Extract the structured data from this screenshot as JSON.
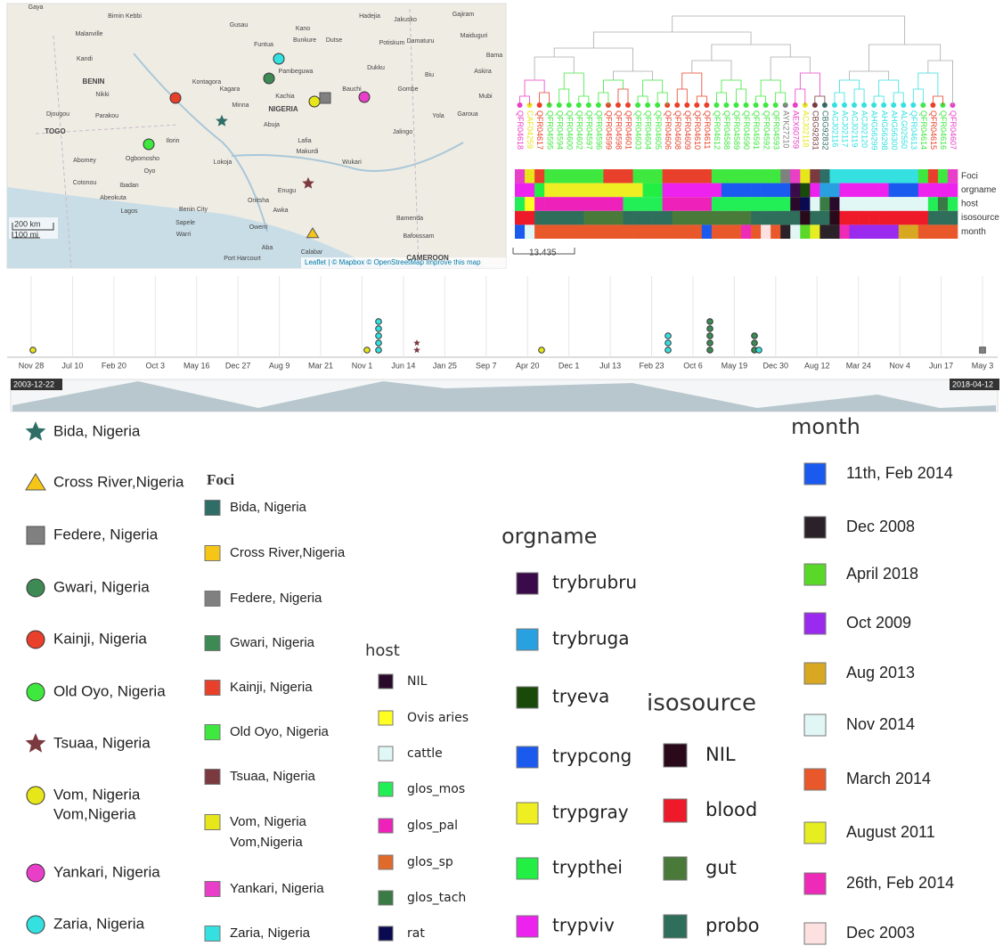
{
  "map": {
    "places": [
      "Gaya",
      "Birnin Kebbi",
      "Gusau",
      "Kano",
      "Hadejia",
      "Jakusko",
      "Gajiram",
      "Malanville",
      "Funtua",
      "Bunkure",
      "Dutse",
      "Potiskum",
      "Damaturu",
      "Maiduguri",
      "Kandi",
      "Bama",
      "Pambeguwa",
      "Dukku",
      "Biu",
      "Askira",
      "BENIN",
      "Kontagora",
      "Kagara",
      "Bauchi",
      "Gombe",
      "Mubi",
      "Nikki",
      "Parakou",
      "Minna",
      "Kachia",
      "NIGERIA",
      "Yola",
      "Garoua",
      "Djougou",
      "TOGO",
      "Abuja",
      "Jalingo",
      "Ilorin",
      "Lafia",
      "Ogbomosho",
      "Oyo",
      "Wukari",
      "Makurdi",
      "Ibadan",
      "Lokoja",
      "Abomey",
      "Cotonou",
      "Abeokuta",
      "Lagos",
      "Benin City",
      "Enugu",
      "Onitsha",
      "Awka",
      "Sapele",
      "Warri",
      "Owerri",
      "Bamenda",
      "CAMEROON",
      "Aba",
      "Port Harcourt",
      "Calabar",
      "Bafoussam"
    ],
    "scale_km": "200 km",
    "scale_mi": "100 mi",
    "attribution": "Leaflet | © Mapbox © OpenStreetMap Improve this map"
  },
  "tree": {
    "tips": [
      "QFR04618",
      "CAF04259",
      "QFR04617",
      "QFR04595",
      "QFR04594",
      "QFR04600",
      "QFR04602",
      "QFR04597",
      "QFR04596",
      "QFR04599",
      "QFR04598",
      "QFR04601",
      "QFR04603",
      "QFR04604",
      "QFR04605",
      "QFR04606",
      "QFR04608",
      "QFR04609",
      "QFR04610",
      "QFR04611",
      "QFR04612",
      "QFR04588",
      "QFR04589",
      "QFR04590",
      "QFR04591",
      "QFR04592",
      "QFR04593",
      "AYK27210",
      "AEX60759",
      "ACJ02118",
      "CBG92831",
      "CBG92832",
      "ACJ02116",
      "ACJ02117",
      "ACJ02119",
      "ACJ02120",
      "AHG56299",
      "AHG56298",
      "AHG56300",
      "ALG02550",
      "QFR04613",
      "QFR04614",
      "QFR04615",
      "QFR04616",
      "QFR04607"
    ],
    "rows": [
      "Foci",
      "orgname",
      "host",
      "isosource",
      "month"
    ],
    "scale": "13.435"
  },
  "timeline": {
    "ticks": [
      "Nov 28",
      "Jul 10",
      "Feb 20",
      "Oct 3",
      "May 16",
      "Dec 27",
      "Aug 9",
      "Mar 21",
      "Nov 1",
      "Jun 14",
      "Jan 25",
      "Sep 7",
      "Apr 20",
      "Dec 1",
      "Jul 13",
      "Feb 23",
      "Oct 6",
      "May 19",
      "Dec 30",
      "Aug 12",
      "Mar 24",
      "Nov 4",
      "Jun 17",
      "May 3"
    ],
    "start": "2003-12-22",
    "end": "2018-04-12"
  },
  "legends": {
    "locations": [
      {
        "label": "Bida, Nigeria",
        "color": "#2e6e66"
      },
      {
        "label": "Cross River,Nigeria",
        "color": "#f5c518"
      },
      {
        "label": "Federe, Nigeria",
        "color": "#808080"
      },
      {
        "label": "Gwari, Nigeria",
        "color": "#3d8a55"
      },
      {
        "label": "Kainji, Nigeria",
        "color": "#e8402a"
      },
      {
        "label": "Old Oyo, Nigeria",
        "color": "#3ee83e"
      },
      {
        "label": "Tsuaa, Nigeria",
        "color": "#7a3a3f"
      },
      {
        "label": [
          "Vom, Nigeria",
          "Vom,Nigeria"
        ],
        "color": "#e6e61a"
      },
      {
        "label": "Yankari, Nigeria",
        "color": "#e83ec8"
      },
      {
        "label": "Zaria, Nigeria",
        "color": "#35e0e0"
      }
    ],
    "foci": {
      "title": "Foci",
      "items": [
        {
          "label": "Bida, Nigeria",
          "color": "#2e6e66"
        },
        {
          "label": "Cross River,Nigeria",
          "color": "#f5c518"
        },
        {
          "label": "Federe, Nigeria",
          "color": "#808080"
        },
        {
          "label": "Gwari, Nigeria",
          "color": "#3d8a55"
        },
        {
          "label": "Kainji, Nigeria",
          "color": "#e8402a"
        },
        {
          "label": "Old Oyo, Nigeria",
          "color": "#3ee83e"
        },
        {
          "label": "Tsuaa, Nigeria",
          "color": "#7a3a3f"
        },
        {
          "label": [
            "Vom, Nigeria",
            "Vom,Nigeria"
          ],
          "color": "#e6e61a"
        },
        {
          "label": "Yankari, Nigeria",
          "color": "#e83ec8"
        },
        {
          "label": "Zaria, Nigeria",
          "color": "#35e0e0"
        }
      ]
    },
    "host": {
      "title": "host",
      "items": [
        {
          "label": "NIL",
          "color": "#2a0a2a"
        },
        {
          "label": "Ovis aries",
          "color": "#ffff22"
        },
        {
          "label": "cattle",
          "color": "#e0f7f5"
        },
        {
          "label": "glos_mos",
          "color": "#22ee55"
        },
        {
          "label": "glos_pal",
          "color": "#ee22bb"
        },
        {
          "label": "glos_sp",
          "color": "#e06a2a"
        },
        {
          "label": "glos_tach",
          "color": "#3a7a45"
        },
        {
          "label": "rat",
          "color": "#0a0a50"
        }
      ]
    },
    "orgname": {
      "title": "orgname",
      "items": [
        {
          "label": "trybrubru",
          "color": "#3a0a4a"
        },
        {
          "label": "trybruga",
          "color": "#29a0e0"
        },
        {
          "label": "tryeva",
          "color": "#1a4a0a"
        },
        {
          "label": "trypcong",
          "color": "#1a5aee"
        },
        {
          "label": "trypgray",
          "color": "#eeee22"
        },
        {
          "label": "trypthei",
          "color": "#22ee44"
        },
        {
          "label": "trypviv",
          "color": "#ee22ee"
        }
      ]
    },
    "isosource": {
      "title": "isosource",
      "items": [
        {
          "label": "NIL",
          "color": "#2a0a1a"
        },
        {
          "label": "blood",
          "color": "#ee1a2a"
        },
        {
          "label": "gut",
          "color": "#4a7a3a"
        },
        {
          "label": "probo",
          "color": "#2e6e5a"
        }
      ]
    },
    "month": {
      "title": "month",
      "items": [
        {
          "label": "11th, Feb 2014",
          "color": "#1a5aee"
        },
        {
          "label": "Dec 2008",
          "color": "#2a2228"
        },
        {
          "label": "April 2018",
          "color": "#5ad82a"
        },
        {
          "label": "Oct 2009",
          "color": "#9a2aee"
        },
        {
          "label": "Aug 2013",
          "color": "#d8a822"
        },
        {
          "label": "Nov 2014",
          "color": "#e0f7f5"
        },
        {
          "label": "March 2014",
          "color": "#e8582a"
        },
        {
          "label": "August 2011",
          "color": "#e6ee22"
        },
        {
          "label": "26th, Feb 2014",
          "color": "#ee2ab8"
        },
        {
          "label": "Dec 2003",
          "color": "#fde0e0"
        }
      ]
    }
  }
}
